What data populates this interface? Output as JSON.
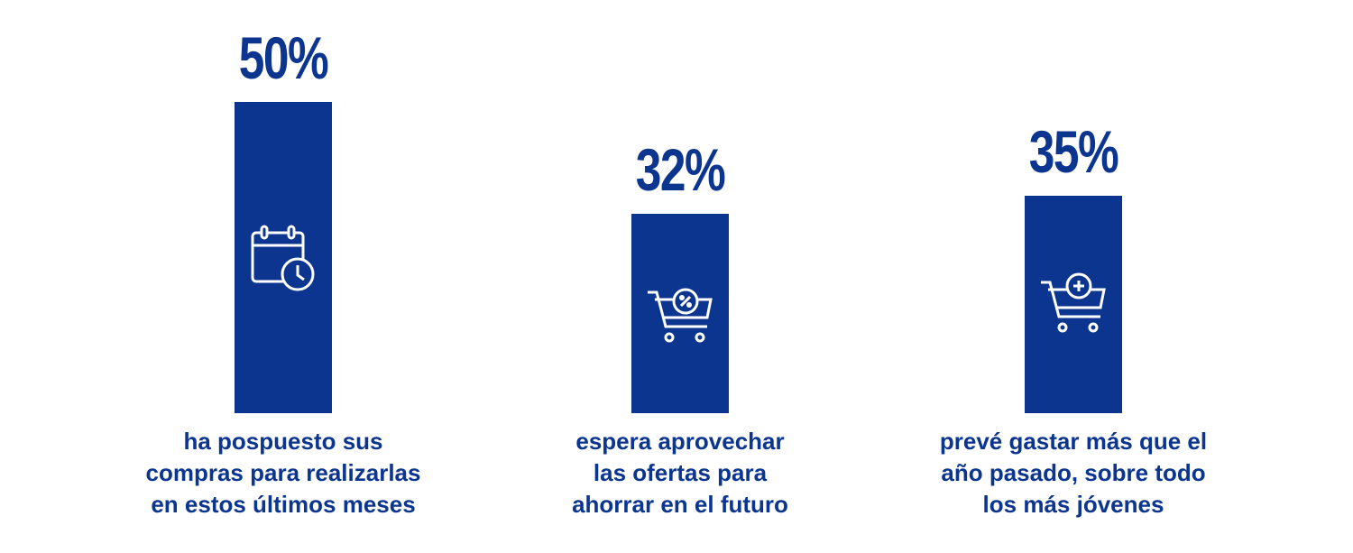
{
  "chart_data": {
    "type": "bar",
    "categories": [
      "ha pospuesto sus\ncompras para realizarlas\nen estos últimos meses",
      "espera aprovechar\nlas ofertas para\nahorrar en el futuro",
      "prevé gastar más que el\naño pasado, sobre todo\nlos más jóvenes"
    ],
    "values": [
      50,
      32,
      35
    ],
    "value_labels": [
      "50%",
      "32%",
      "35%"
    ],
    "color": "#0b358f"
  }
}
